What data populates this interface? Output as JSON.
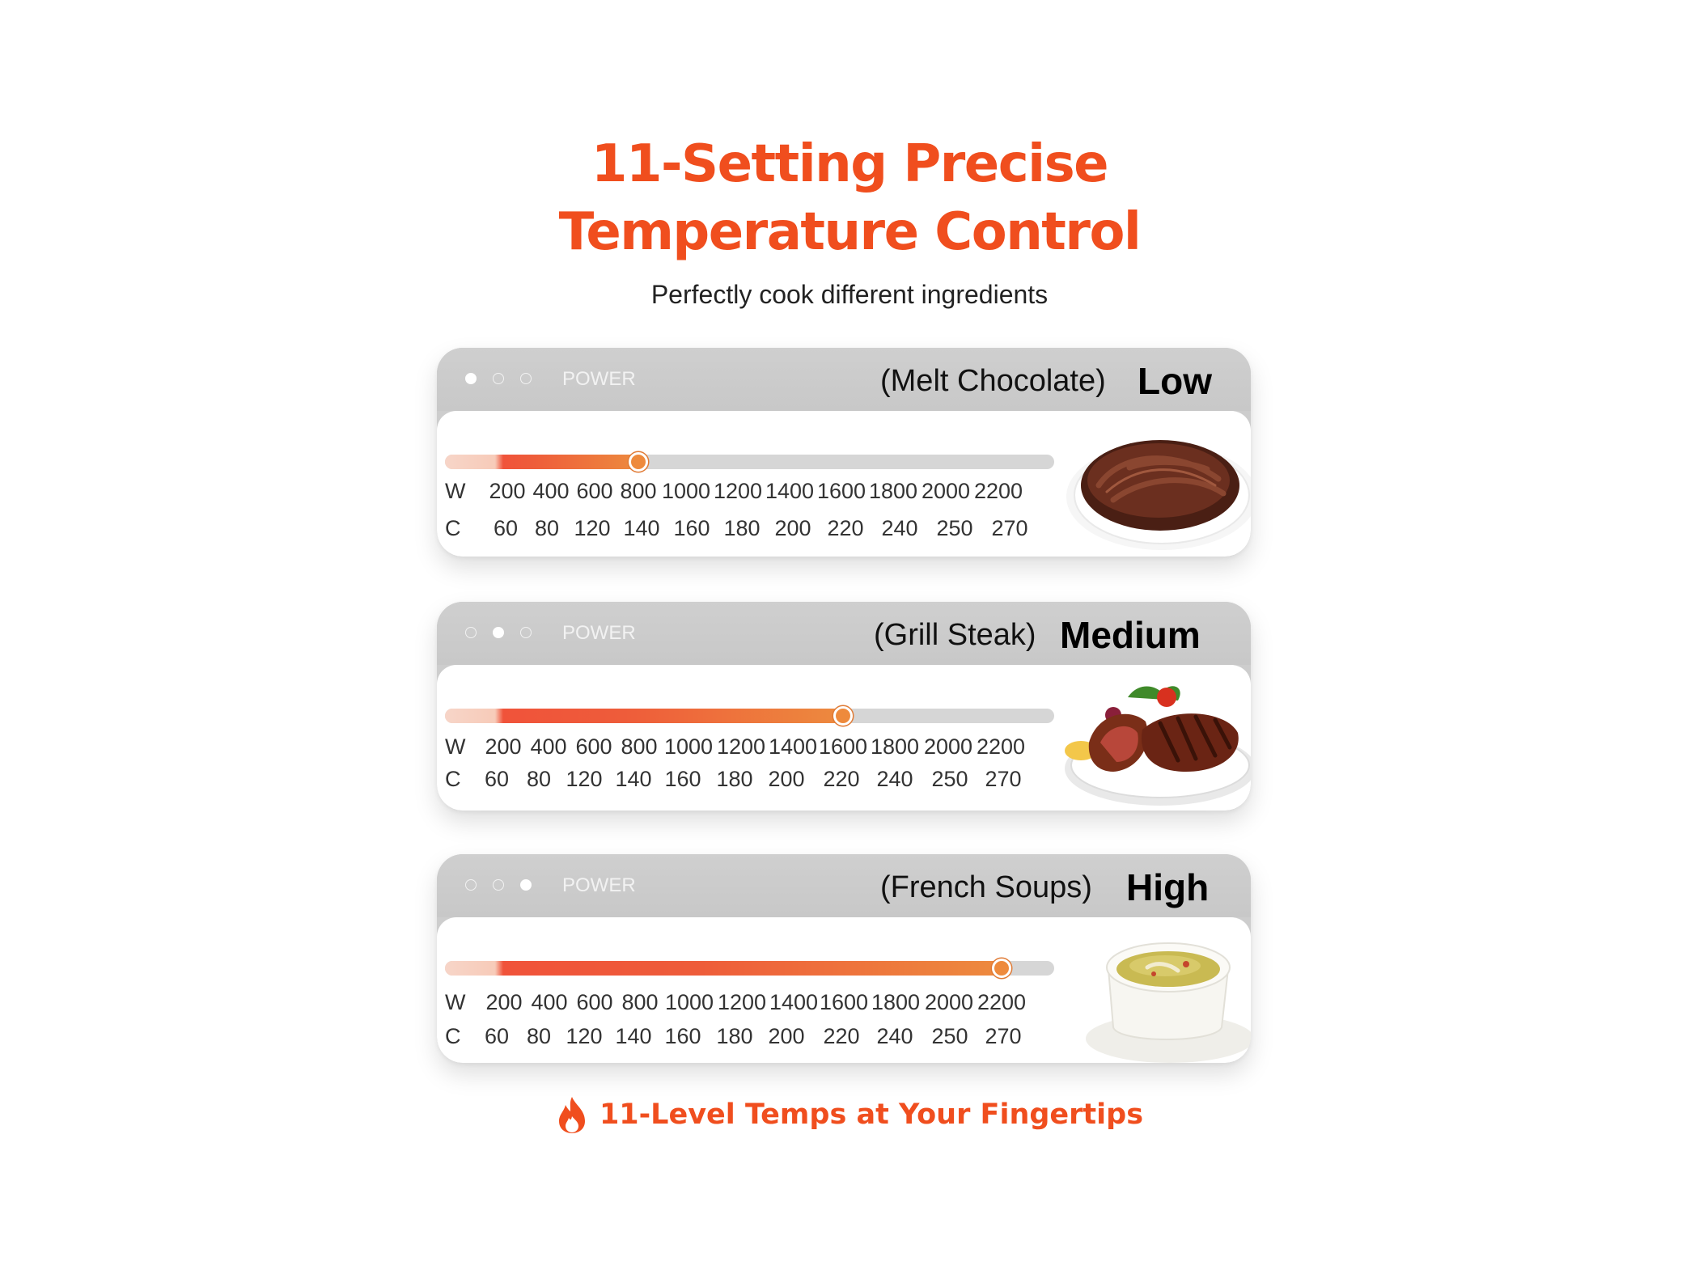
{
  "header": {
    "title_line1": "11-Setting Precise",
    "title_line2": "Temperature Control",
    "subtitle": "Perfectly cook different ingredients"
  },
  "watts": [
    "200",
    "400",
    "600",
    "800",
    "1000",
    "1200",
    "1400",
    "1600",
    "1800",
    "2000",
    "2200"
  ],
  "celsius": [
    "60",
    "80",
    "120",
    "140",
    "160",
    "180",
    "200",
    "220",
    "240",
    "250",
    "270"
  ],
  "unit_w": "W",
  "unit_c": "C",
  "colors": {
    "accent": "#f04e1e",
    "slider_end": "#ed8a3e",
    "panel": "#cdcdcd"
  },
  "cards": [
    {
      "power_label": "POWER",
      "dish": "(Melt Chocolate)",
      "level": "Low",
      "active_dot": 1,
      "setting_watts": 800,
      "food_icon": "chocolate-bowl-icon"
    },
    {
      "power_label": "POWER",
      "dish": "(Grill Steak)",
      "level": "Medium",
      "active_dot": 2,
      "setting_watts": 1600,
      "food_icon": "steak-plate-icon"
    },
    {
      "power_label": "POWER",
      "dish": "(French Soups)",
      "level": "High",
      "active_dot": 3,
      "setting_watts": 2200,
      "food_icon": "soup-bowl-icon"
    }
  ],
  "footer": {
    "icon": "flame-icon",
    "text": "11-Level Temps at Your Fingertips"
  }
}
